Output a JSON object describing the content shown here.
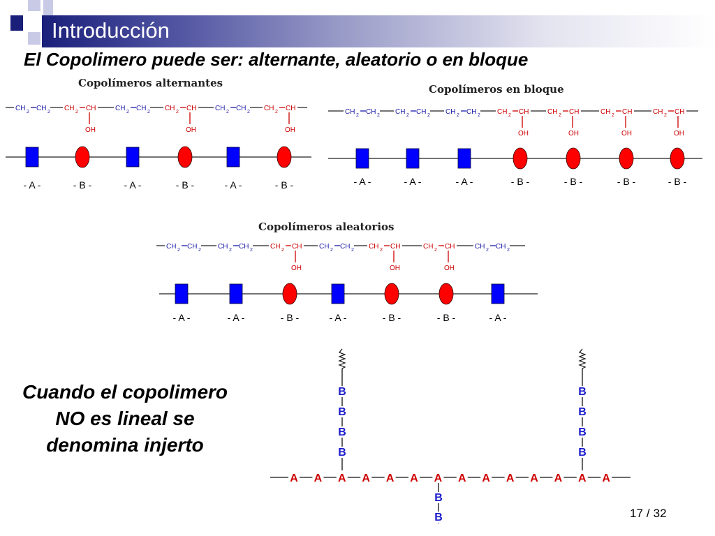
{
  "slide": {
    "title": "Introducción",
    "subtitle": "El Copolimero puede ser: alternante, aleatorio o en bloque",
    "note": "Cuando el copolimero NO es lineal se denomina injerto",
    "page": {
      "current": "17",
      "separator": "/",
      "total": "32"
    }
  },
  "chem": {
    "ch2": "CH",
    "sub2": "2",
    "ch": "CH",
    "oh": "OH"
  },
  "panels": {
    "alternating": {
      "title": "Copolímeros alternantes",
      "sequence": [
        "A",
        "B",
        "A",
        "B",
        "A",
        "B"
      ]
    },
    "block": {
      "title": "Copolímeros en bloque",
      "sequence": [
        "A",
        "A",
        "A",
        "B",
        "B",
        "B",
        "B"
      ]
    },
    "random": {
      "title": "Copolímeros aleatorios",
      "sequence": [
        "A",
        "A",
        "B",
        "A",
        "B",
        "B",
        "A"
      ]
    }
  },
  "unit_labels": {
    "A": "- A -",
    "B": "- B -"
  },
  "graft": {
    "backbone": [
      "A",
      "A",
      "A",
      "A",
      "A",
      "A",
      "A",
      "A",
      "A",
      "A",
      "A",
      "A",
      "A",
      "A"
    ],
    "branch_up_1": [
      "B",
      "B",
      "B",
      "B"
    ],
    "branch_up_2": [
      "B",
      "B",
      "B",
      "B"
    ],
    "branch_down": [
      "B",
      "B"
    ]
  },
  "colors": {
    "unit_A": "#0000ff",
    "unit_B": "#ff0000",
    "chem_backbone": "#1a1aaa",
    "chem_side": "#cc0000",
    "graft_A": "#cc0000",
    "graft_B": "#1a1acc"
  }
}
